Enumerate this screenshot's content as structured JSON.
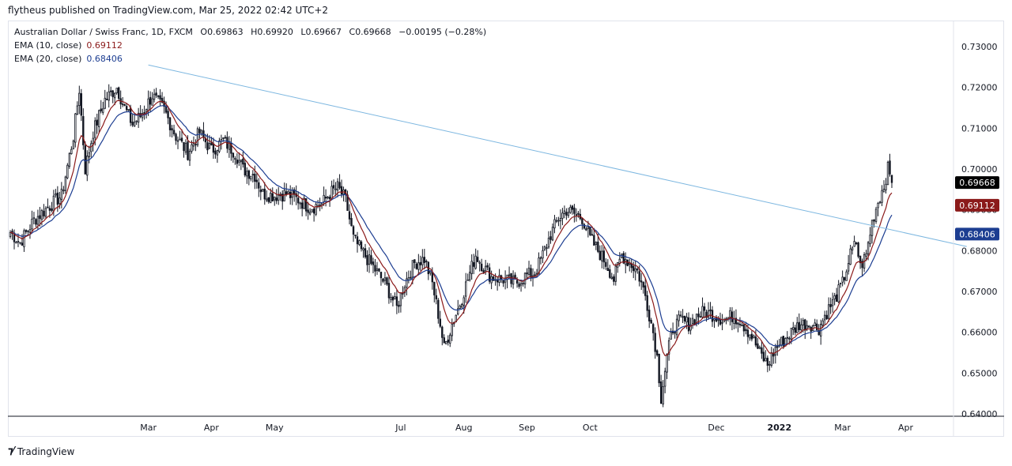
{
  "header": {
    "published": "flytheus published on TradingView.com, Mar 25, 2022 02:42 UTC+2"
  },
  "legend": {
    "symbol": "Australian Dollar / Swiss Franc, 1D, FXCM",
    "open_label": "O",
    "open": "0.69863",
    "high_label": "H",
    "high": "0.69920",
    "low_label": "L",
    "low": "0.69667",
    "close_label": "C",
    "close": "0.69668",
    "change": "−0.00195 (−0.28%)",
    "ema10_label": "EMA (10, close)",
    "ema10_value": "0.69112",
    "ema20_label": "EMA (20, close)",
    "ema20_value": "0.68406"
  },
  "footer": {
    "logo_text": "TradingView"
  },
  "colors": {
    "up": "#131722",
    "down": "#131722",
    "ema10": "#8b1a1a",
    "ema20": "#1c3d91",
    "trendline": "#7db7e0",
    "price_badge": "#000000"
  },
  "chart_data": {
    "type": "candlestick",
    "title": "Australian Dollar / Swiss Franc, 1D, FXCM",
    "ylim": [
      0.64,
      0.73
    ],
    "y_ticks": [
      "0.73000",
      "0.72000",
      "0.71000",
      "0.70000",
      "0.69000",
      "0.68000",
      "0.67000",
      "0.66000",
      "0.65000",
      "0.64000"
    ],
    "x_ticks": [
      "Mar",
      "Apr",
      "May",
      "Jul",
      "Aug",
      "Sep",
      "Oct",
      "Dec",
      "2022",
      "Mar",
      "Apr"
    ],
    "x_tick_days": [
      70,
      102,
      134,
      198,
      230,
      262,
      294,
      358,
      390,
      422,
      454
    ],
    "last_day": 447,
    "price_labels": [
      {
        "name": "close",
        "value": 0.69668,
        "text": "0.69668",
        "color": "#000000"
      },
      {
        "name": "ema10",
        "value": 0.69112,
        "text": "0.69112",
        "color": "#8b1a1a"
      },
      {
        "name": "ema20",
        "value": 0.68406,
        "text": "0.68406",
        "color": "#1c3d91"
      }
    ],
    "trendline": {
      "start": {
        "day": 70,
        "price": 0.7255
      },
      "end": {
        "day": 485,
        "price": 0.681
      }
    },
    "anchors": [
      [
        0,
        0.6845
      ],
      [
        5,
        0.682
      ],
      [
        12,
        0.6875
      ],
      [
        20,
        0.691
      ],
      [
        26,
        0.6935
      ],
      [
        32,
        0.708
      ],
      [
        35,
        0.7195
      ],
      [
        38,
        0.7
      ],
      [
        42,
        0.709
      ],
      [
        48,
        0.717
      ],
      [
        54,
        0.72
      ],
      [
        58,
        0.715
      ],
      [
        62,
        0.711
      ],
      [
        66,
        0.713
      ],
      [
        72,
        0.718
      ],
      [
        78,
        0.7145
      ],
      [
        84,
        0.708
      ],
      [
        90,
        0.704
      ],
      [
        96,
        0.709
      ],
      [
        102,
        0.7045
      ],
      [
        108,
        0.707
      ],
      [
        114,
        0.704
      ],
      [
        118,
        0.7
      ],
      [
        124,
        0.6985
      ],
      [
        128,
        0.694
      ],
      [
        134,
        0.6935
      ],
      [
        140,
        0.694
      ],
      [
        146,
        0.6925
      ],
      [
        152,
        0.6905
      ],
      [
        158,
        0.6915
      ],
      [
        162,
        0.694
      ],
      [
        166,
        0.6955
      ],
      [
        170,
        0.6925
      ],
      [
        174,
        0.683
      ],
      [
        178,
        0.68
      ],
      [
        184,
        0.676
      ],
      [
        190,
        0.672
      ],
      [
        196,
        0.666
      ],
      [
        200,
        0.672
      ],
      [
        205,
        0.677
      ],
      [
        210,
        0.678
      ],
      [
        214,
        0.672
      ],
      [
        218,
        0.662
      ],
      [
        220,
        0.656
      ],
      [
        224,
        0.662
      ],
      [
        228,
        0.667
      ],
      [
        232,
        0.673
      ],
      [
        236,
        0.679
      ],
      [
        240,
        0.676
      ],
      [
        244,
        0.6735
      ],
      [
        250,
        0.673
      ],
      [
        256,
        0.672
      ],
      [
        262,
        0.674
      ],
      [
        266,
        0.6745
      ],
      [
        270,
        0.679
      ],
      [
        274,
        0.684
      ],
      [
        278,
        0.688
      ],
      [
        282,
        0.69
      ],
      [
        286,
        0.689
      ],
      [
        290,
        0.688
      ],
      [
        294,
        0.683
      ],
      [
        298,
        0.68
      ],
      [
        302,
        0.677
      ],
      [
        306,
        0.673
      ],
      [
        310,
        0.679
      ],
      [
        314,
        0.677
      ],
      [
        318,
        0.675
      ],
      [
        322,
        0.669
      ],
      [
        326,
        0.66
      ],
      [
        328,
        0.654
      ],
      [
        330,
        0.644
      ],
      [
        333,
        0.654
      ],
      [
        336,
        0.661
      ],
      [
        340,
        0.663
      ],
      [
        344,
        0.662
      ],
      [
        348,
        0.664
      ],
      [
        352,
        0.665
      ],
      [
        358,
        0.664
      ],
      [
        362,
        0.663
      ],
      [
        366,
        0.664
      ],
      [
        370,
        0.663
      ],
      [
        376,
        0.659
      ],
      [
        380,
        0.655
      ],
      [
        384,
        0.652
      ],
      [
        388,
        0.656
      ],
      [
        392,
        0.658
      ],
      [
        396,
        0.66
      ],
      [
        400,
        0.662
      ],
      [
        406,
        0.662
      ],
      [
        410,
        0.661
      ],
      [
        414,
        0.665
      ],
      [
        418,
        0.668
      ],
      [
        422,
        0.672
      ],
      [
        426,
        0.679
      ],
      [
        429,
        0.682
      ],
      [
        431,
        0.676
      ],
      [
        434,
        0.679
      ],
      [
        437,
        0.687
      ],
      [
        440,
        0.692
      ],
      [
        443,
        0.696
      ],
      [
        445,
        0.7
      ],
      [
        447,
        0.69668
      ]
    ]
  }
}
